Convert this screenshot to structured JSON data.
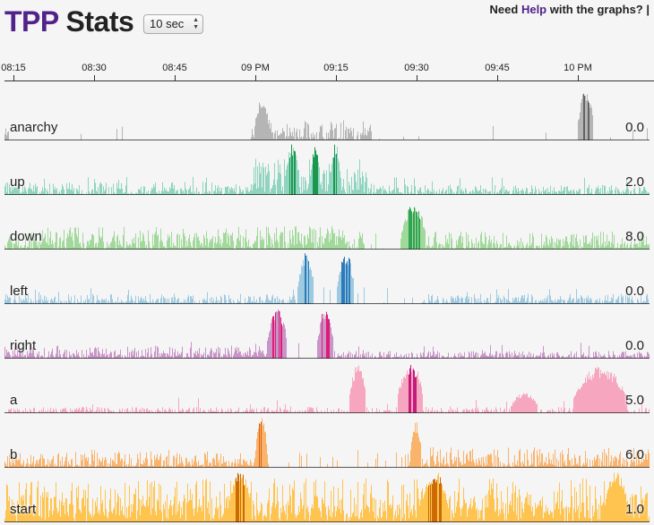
{
  "header": {
    "title_part1": "TPP",
    "title_part2": "Stats",
    "interval": {
      "selected": "10 sec"
    },
    "help": {
      "prefix": "Need ",
      "link": "Help",
      "suffix": " with the graphs? |"
    }
  },
  "time_axis": {
    "ticks": [
      "08:15",
      "08:30",
      "08:45",
      "09 PM",
      "09:15",
      "09:30",
      "09:45",
      "10 PM"
    ]
  },
  "chart_data": {
    "type": "area",
    "x_ticks": [
      "08:15",
      "08:30",
      "08:45",
      "09 PM",
      "09:15",
      "09:30",
      "09:45",
      "10 PM"
    ],
    "series": [
      {
        "name": "anarchy",
        "current_value": "0.0",
        "color": "#b5b5b5",
        "peak_color": "#636363"
      },
      {
        "name": "up",
        "current_value": "2.0",
        "color": "#8fd4be",
        "peak_color": "#1a9850"
      },
      {
        "name": "down",
        "current_value": "8.0",
        "color": "#a1d99b",
        "peak_color": "#31a354"
      },
      {
        "name": "left",
        "current_value": "0.0",
        "color": "#9ecae1",
        "peak_color": "#2b7bba"
      },
      {
        "name": "right",
        "current_value": "0.0",
        "color": "#c994c7",
        "peak_color": "#dd1c77"
      },
      {
        "name": "a",
        "current_value": "5.0",
        "color": "#f7a6c0",
        "peak_color": "#c51b7d"
      },
      {
        "name": "b",
        "current_value": "6.0",
        "color": "#f9b36b",
        "peak_color": "#d95f0e"
      },
      {
        "name": "start",
        "current_value": "1.0",
        "color": "#fec44f",
        "peak_color": "#cc6a04"
      }
    ]
  }
}
